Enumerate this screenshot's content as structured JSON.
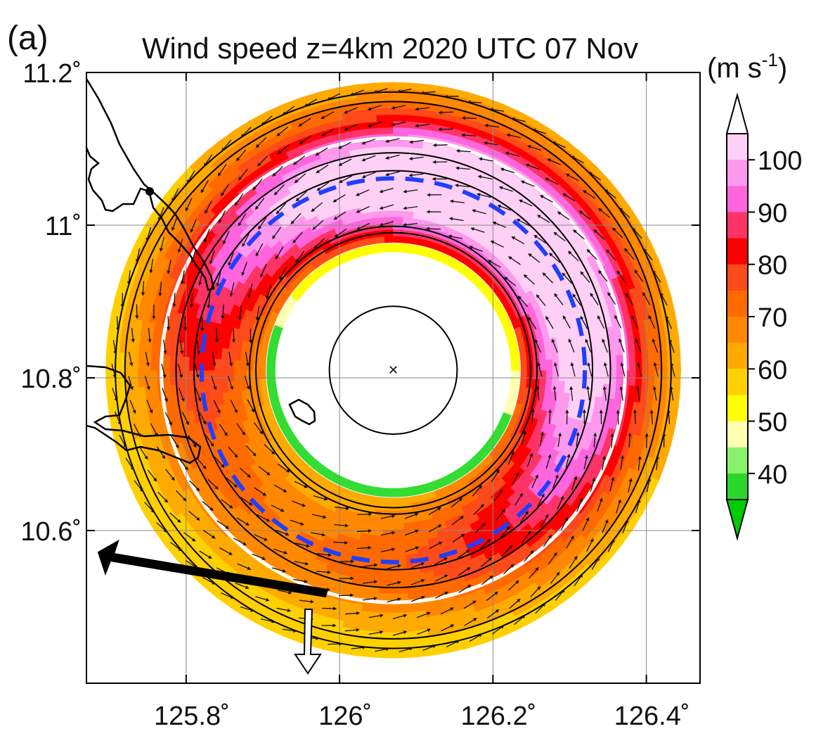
{
  "panel_label": "(a)",
  "title": "Wind speed z=4km 2020 UTC 07 Nov",
  "colorbar": {
    "unit_prefix": "(m s",
    "unit_exp": "-1",
    "unit_suffix": ")",
    "labels": [
      "40",
      "50",
      "60",
      "70",
      "80",
      "90",
      "100"
    ],
    "colors": [
      "#2bd62b",
      "#8af26a",
      "#ffffb0",
      "#ffff00",
      "#ffd000",
      "#ffaa00",
      "#ff8800",
      "#ff6a00",
      "#ff4a1a",
      "#ff0000",
      "#ff3366",
      "#ff66dd",
      "#ff99ee",
      "#ffd0f5"
    ],
    "under_color": "#00cc00",
    "over_color": "#ffffff"
  },
  "axes": {
    "x_ticks": [
      {
        "value": 125.8,
        "label": "125.8˚"
      },
      {
        "value": 126.0,
        "label": "126˚"
      },
      {
        "value": 126.2,
        "label": "126.2˚"
      },
      {
        "value": 126.4,
        "label": "126.4˚"
      }
    ],
    "y_ticks": [
      {
        "value": 11.2,
        "label": "11.2˚"
      },
      {
        "value": 11.0,
        "label": "11˚"
      },
      {
        "value": 10.8,
        "label": "10.8˚"
      },
      {
        "value": 10.6,
        "label": "10.6˚"
      }
    ],
    "lon_range": [
      125.67,
      126.47
    ],
    "lat_range": [
      10.4,
      11.2
    ],
    "grid": true
  },
  "storm_center": {
    "lon": 126.07,
    "lat": 10.81,
    "marker": "×"
  },
  "wind_speed_ring": {
    "r_inner_km": 20,
    "r_outer_km": 45,
    "field": "azimuthal",
    "note_color_min": 40,
    "note_color_max": 100
  },
  "range_circles_km": [
    10,
    20,
    22,
    26,
    29,
    32,
    35,
    38,
    42,
    44
  ],
  "rmw_dashed_circle": {
    "r_km": 30,
    "color": "#1f3fff"
  },
  "vectors": {
    "motion_arrow": {
      "color": "#000000",
      "direction": "west-northwest"
    },
    "shear_arrow": {
      "color": "#ffffff",
      "direction": "south"
    }
  }
}
